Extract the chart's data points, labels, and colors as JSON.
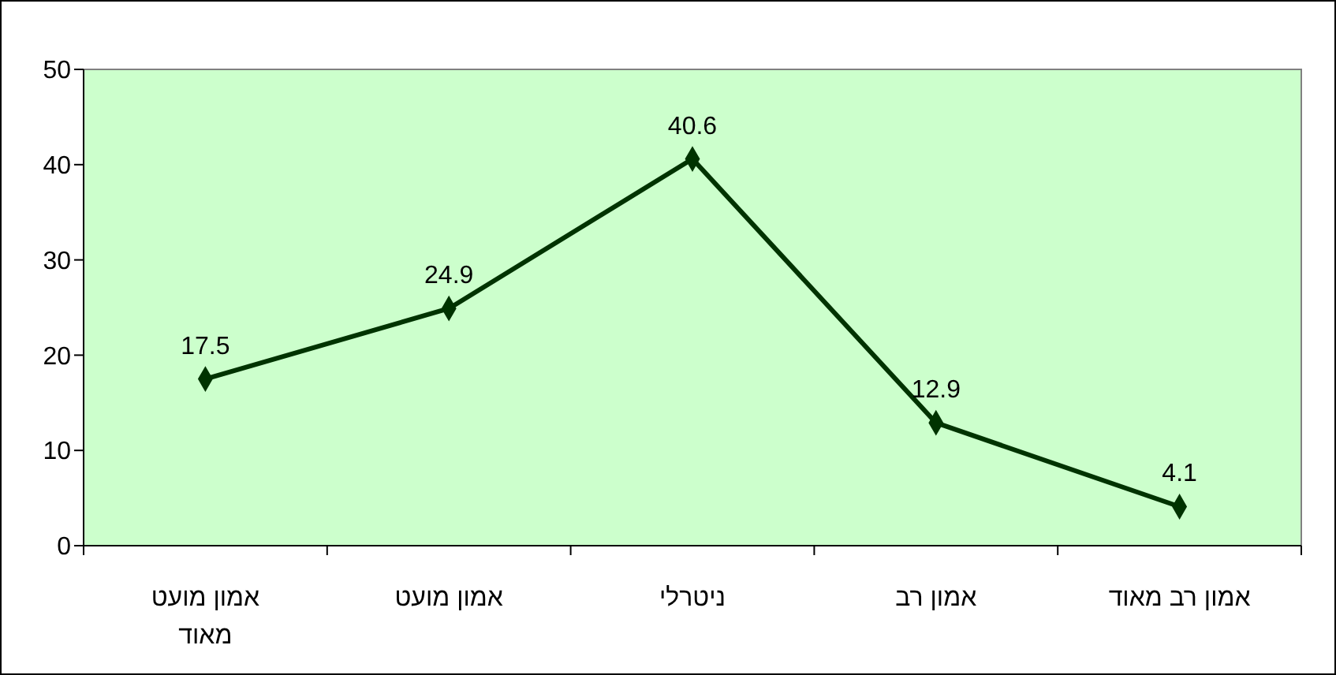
{
  "chart_data": {
    "type": "line",
    "categories": [
      "אמון מועט מאוד",
      "אמון מועט",
      "ניטרלי",
      "אמון רב",
      "אמון רב מאוד"
    ],
    "series": [
      {
        "color": "#003300",
        "values": [
          17.5,
          24.9,
          40.6,
          12.9,
          4.1
        ]
      }
    ],
    "ylim": [
      0,
      50
    ],
    "yticks": [
      0,
      10,
      20,
      30,
      40,
      50
    ],
    "grid": false,
    "marker": "diamond",
    "line_style": "solid",
    "data_labels": true
  }
}
